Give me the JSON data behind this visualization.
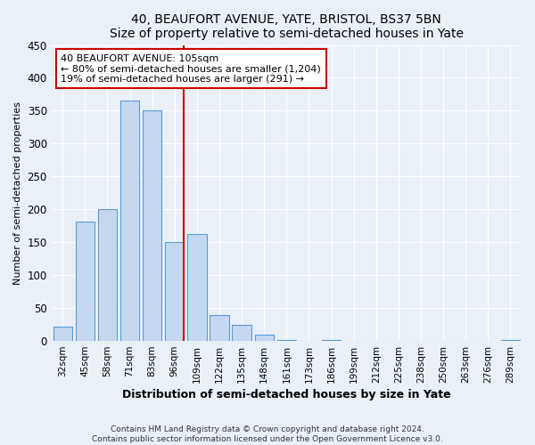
{
  "title": "40, BEAUFORT AVENUE, YATE, BRISTOL, BS37 5BN",
  "subtitle": "Size of property relative to semi-detached houses in Yate",
  "xlabel": "Distribution of semi-detached houses by size in Yate",
  "ylabel": "Number of semi-detached properties",
  "bar_labels": [
    "32sqm",
    "45sqm",
    "58sqm",
    "71sqm",
    "83sqm",
    "96sqm",
    "109sqm",
    "122sqm",
    "135sqm",
    "148sqm",
    "161sqm",
    "173sqm",
    "186sqm",
    "199sqm",
    "212sqm",
    "225sqm",
    "238sqm",
    "250sqm",
    "263sqm",
    "276sqm",
    "289sqm"
  ],
  "bar_values": [
    22,
    182,
    201,
    365,
    350,
    150,
    163,
    40,
    25,
    9,
    2,
    0,
    1,
    0,
    0,
    0,
    0,
    0,
    0,
    0,
    2
  ],
  "bar_color": "#c5d8f0",
  "bar_edge_color": "#5b9bd5",
  "vline_color": "#cc0000",
  "annotation_title": "40 BEAUFORT AVENUE: 105sqm",
  "annotation_line1": "← 80% of semi-detached houses are smaller (1,204)",
  "annotation_line2": "19% of semi-detached houses are larger (291) →",
  "annotation_box_color": "#cc0000",
  "ylim": [
    0,
    450
  ],
  "yticks": [
    0,
    50,
    100,
    150,
    200,
    250,
    300,
    350,
    400,
    450
  ],
  "footer_line1": "Contains HM Land Registry data © Crown copyright and database right 2024.",
  "footer_line2": "Contains public sector information licensed under the Open Government Licence v3.0.",
  "background_color": "#eaf0f8",
  "plot_bg_color": "#eaf0f8",
  "grid_color": "#ffffff"
}
